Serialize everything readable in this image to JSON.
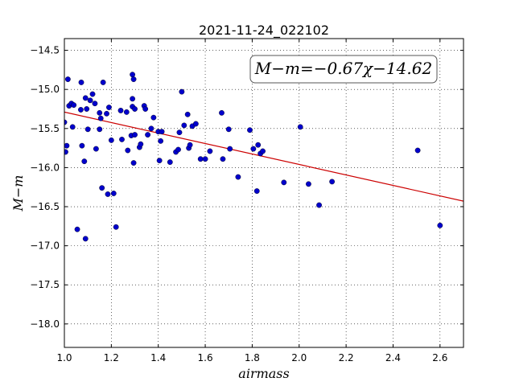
{
  "chart_data": {
    "type": "scatter",
    "title": "2021-11-24_022102",
    "xlabel": "airmass",
    "ylabel": "M−m",
    "xlim": [
      1.0,
      2.7
    ],
    "ylim": [
      -18.3,
      -14.35
    ],
    "y_inverted": true,
    "grid": true,
    "x_ticks": [
      "1.0",
      "1.2",
      "1.4",
      "1.6",
      "1.8",
      "2.0",
      "2.2",
      "2.4",
      "2.6"
    ],
    "y_ticks": [
      "−14.5",
      "−15.0",
      "−15.5",
      "−16.0",
      "−16.5",
      "−17.0",
      "−17.5",
      "−18.0"
    ],
    "x_tick_values": [
      1.0,
      1.2,
      1.4,
      1.6,
      1.8,
      2.0,
      2.2,
      2.4,
      2.6
    ],
    "y_tick_values": [
      -14.5,
      -15.0,
      -15.5,
      -16.0,
      -16.5,
      -17.0,
      -17.5,
      -18.0
    ],
    "annotation": "M−m=−0.67χ−14.62",
    "fit": {
      "slope": -0.67,
      "intercept": -14.62,
      "color": "#cc0000"
    },
    "point_color": "#0000cc",
    "points": [
      [
        1.0,
        -15.42
      ],
      [
        1.005,
        -15.8
      ],
      [
        1.01,
        -15.72
      ],
      [
        1.015,
        -14.87
      ],
      [
        1.02,
        -15.21
      ],
      [
        1.03,
        -15.18
      ],
      [
        1.035,
        -15.48
      ],
      [
        1.04,
        -15.2
      ],
      [
        1.055,
        -16.79
      ],
      [
        1.07,
        -15.26
      ],
      [
        1.072,
        -14.91
      ],
      [
        1.075,
        -15.72
      ],
      [
        1.085,
        -15.92
      ],
      [
        1.09,
        -16.91
      ],
      [
        1.09,
        -15.11
      ],
      [
        1.095,
        -15.25
      ],
      [
        1.1,
        -15.51
      ],
      [
        1.11,
        -15.14
      ],
      [
        1.12,
        -15.06
      ],
      [
        1.13,
        -15.18
      ],
      [
        1.135,
        -15.76
      ],
      [
        1.15,
        -15.3
      ],
      [
        1.15,
        -15.51
      ],
      [
        1.155,
        -15.37
      ],
      [
        1.16,
        -16.26
      ],
      [
        1.165,
        -14.91
      ],
      [
        1.18,
        -15.31
      ],
      [
        1.185,
        -16.34
      ],
      [
        1.19,
        -15.23
      ],
      [
        1.2,
        -15.65
      ],
      [
        1.21,
        -16.33
      ],
      [
        1.22,
        -16.76
      ],
      [
        1.24,
        -15.27
      ],
      [
        1.245,
        -15.64
      ],
      [
        1.265,
        -15.29
      ],
      [
        1.27,
        -15.78
      ],
      [
        1.285,
        -15.59
      ],
      [
        1.29,
        -15.12
      ],
      [
        1.29,
        -15.22
      ],
      [
        1.29,
        -14.81
      ],
      [
        1.295,
        -14.87
      ],
      [
        1.295,
        -15.94
      ],
      [
        1.3,
        -15.58
      ],
      [
        1.3,
        -15.25
      ],
      [
        1.32,
        -15.74
      ],
      [
        1.325,
        -15.7
      ],
      [
        1.34,
        -15.21
      ],
      [
        1.345,
        -15.25
      ],
      [
        1.355,
        -15.58
      ],
      [
        1.37,
        -15.5
      ],
      [
        1.38,
        -15.36
      ],
      [
        1.4,
        -15.54
      ],
      [
        1.405,
        -15.91
      ],
      [
        1.41,
        -15.66
      ],
      [
        1.415,
        -15.54
      ],
      [
        1.45,
        -15.93
      ],
      [
        1.475,
        -15.8
      ],
      [
        1.485,
        -15.77
      ],
      [
        1.49,
        -15.55
      ],
      [
        1.5,
        -15.03
      ],
      [
        1.51,
        -15.46
      ],
      [
        1.525,
        -15.32
      ],
      [
        1.53,
        -15.75
      ],
      [
        1.535,
        -15.71
      ],
      [
        1.545,
        -15.47
      ],
      [
        1.56,
        -15.44
      ],
      [
        1.58,
        -15.89
      ],
      [
        1.6,
        -15.89
      ],
      [
        1.62,
        -15.79
      ],
      [
        1.67,
        -15.3
      ],
      [
        1.675,
        -15.89
      ],
      [
        1.7,
        -15.51
      ],
      [
        1.705,
        -15.76
      ],
      [
        1.74,
        -16.12
      ],
      [
        1.79,
        -15.52
      ],
      [
        1.805,
        -15.76
      ],
      [
        1.82,
        -16.3
      ],
      [
        1.825,
        -15.71
      ],
      [
        1.835,
        -15.82
      ],
      [
        1.845,
        -15.79
      ],
      [
        1.935,
        -16.19
      ],
      [
        2.005,
        -15.48
      ],
      [
        2.04,
        -16.21
      ],
      [
        2.085,
        -16.48
      ],
      [
        2.14,
        -16.18
      ],
      [
        2.505,
        -15.78
      ],
      [
        2.6,
        -16.74
      ]
    ]
  }
}
